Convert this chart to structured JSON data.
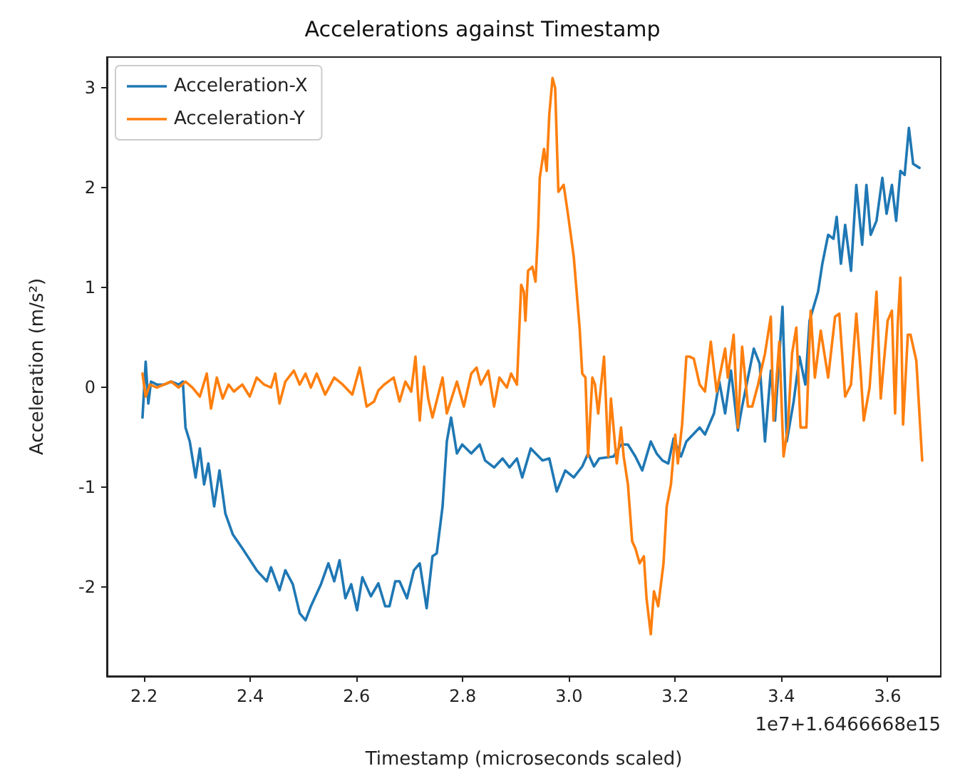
{
  "chart_data": {
    "type": "line",
    "title": "Accelerations against Timestamp",
    "xlabel": "Timestamp (microseconds scaled)",
    "ylabel": "Acceleration (m/s²)",
    "annotations": [
      "1e7+1.6466668e15"
    ],
    "xlim": [
      2.13,
      3.7
    ],
    "ylim": [
      -2.89,
      3.31
    ],
    "xticks": [
      {
        "value": 2.2,
        "label": "2.2"
      },
      {
        "value": 2.4,
        "label": "2.4"
      },
      {
        "value": 2.6,
        "label": "2.6"
      },
      {
        "value": 2.8,
        "label": "2.8"
      },
      {
        "value": 3.0,
        "label": "3.0"
      },
      {
        "value": 3.2,
        "label": "3.2"
      },
      {
        "value": 3.4,
        "label": "3.4"
      },
      {
        "value": 3.6,
        "label": "3.6"
      }
    ],
    "yticks": [
      -2,
      -1,
      0,
      1,
      2,
      3
    ],
    "grid": false,
    "legend": "top left",
    "marker": "none",
    "line_style": "solid",
    "series": [
      {
        "name": "Acceleration-X",
        "color": "#1f77b4",
        "x": [
          2.197,
          2.203,
          2.208,
          2.213,
          2.224,
          2.238,
          2.251,
          2.265,
          2.273,
          2.278,
          2.286,
          2.297,
          2.305,
          2.313,
          2.321,
          2.332,
          2.342,
          2.353,
          2.367,
          2.385,
          2.412,
          2.431,
          2.439,
          2.455,
          2.466,
          2.48,
          2.493,
          2.504,
          2.514,
          2.533,
          2.547,
          2.558,
          2.568,
          2.579,
          2.59,
          2.601,
          2.611,
          2.627,
          2.641,
          2.654,
          2.662,
          2.673,
          2.681,
          2.695,
          2.708,
          2.719,
          2.732,
          2.743,
          2.751,
          2.762,
          2.77,
          2.778,
          2.789,
          2.799,
          2.816,
          2.832,
          2.842,
          2.859,
          2.875,
          2.888,
          2.902,
          2.912,
          2.928,
          2.95,
          2.963,
          2.977,
          2.993,
          3.009,
          3.025,
          3.036,
          3.047,
          3.057,
          3.084,
          3.098,
          3.111,
          3.125,
          3.138,
          3.154,
          3.165,
          3.176,
          3.187,
          3.197,
          3.211,
          3.221,
          3.246,
          3.256,
          3.273,
          3.283,
          3.294,
          3.305,
          3.318,
          3.326,
          3.337,
          3.348,
          3.359,
          3.369,
          3.38,
          3.388,
          3.402,
          3.41,
          3.423,
          3.434,
          3.445,
          3.453,
          3.469,
          3.477,
          3.488,
          3.498,
          3.504,
          3.512,
          3.52,
          3.531,
          3.541,
          3.552,
          3.56,
          3.568,
          3.579,
          3.59,
          3.598,
          3.608,
          3.616,
          3.624,
          3.632,
          3.64,
          3.648,
          3.66
        ],
        "values": [
          -0.3,
          0.26,
          -0.16,
          0.06,
          0.03,
          0.03,
          0.06,
          0.03,
          0.06,
          -0.4,
          -0.54,
          -0.9,
          -0.61,
          -0.97,
          -0.76,
          -1.19,
          -0.83,
          -1.26,
          -1.47,
          -1.61,
          -1.83,
          -1.94,
          -1.8,
          -2.03,
          -1.83,
          -1.97,
          -2.26,
          -2.33,
          -2.19,
          -1.97,
          -1.76,
          -1.94,
          -1.73,
          -2.11,
          -1.97,
          -2.23,
          -1.9,
          -2.09,
          -1.96,
          -2.19,
          -2.19,
          -1.94,
          -1.94,
          -2.11,
          -1.83,
          -1.76,
          -2.21,
          -1.69,
          -1.66,
          -1.19,
          -0.54,
          -0.3,
          -0.66,
          -0.57,
          -0.66,
          -0.57,
          -0.73,
          -0.8,
          -0.71,
          -0.8,
          -0.71,
          -0.9,
          -0.61,
          -0.73,
          -0.71,
          -1.04,
          -0.83,
          -0.9,
          -0.79,
          -0.66,
          -0.79,
          -0.71,
          -0.69,
          -0.57,
          -0.57,
          -0.69,
          -0.83,
          -0.54,
          -0.66,
          -0.73,
          -0.76,
          -0.51,
          -0.69,
          -0.54,
          -0.4,
          -0.47,
          -0.26,
          0.06,
          -0.26,
          0.17,
          -0.43,
          -0.19,
          0.1,
          0.39,
          0.24,
          -0.54,
          0.17,
          -0.33,
          0.81,
          -0.54,
          -0.14,
          0.31,
          0.03,
          0.67,
          0.96,
          1.24,
          1.53,
          1.49,
          1.71,
          1.24,
          1.63,
          1.17,
          2.03,
          1.43,
          2.03,
          1.53,
          1.67,
          2.1,
          1.74,
          2.03,
          1.67,
          2.17,
          2.13,
          2.6,
          2.24,
          2.2
        ]
      },
      {
        "name": "Acceleration-Y",
        "color": "#ff7f0e",
        "x": [
          2.197,
          2.203,
          2.211,
          2.224,
          2.251,
          2.265,
          2.278,
          2.291,
          2.305,
          2.318,
          2.326,
          2.337,
          2.348,
          2.359,
          2.369,
          2.385,
          2.399,
          2.412,
          2.426,
          2.439,
          2.447,
          2.455,
          2.466,
          2.482,
          2.493,
          2.504,
          2.514,
          2.525,
          2.541,
          2.558,
          2.574,
          2.592,
          2.606,
          2.619,
          2.633,
          2.641,
          2.652,
          2.67,
          2.681,
          2.692,
          2.703,
          2.711,
          2.719,
          2.727,
          2.735,
          2.743,
          2.762,
          2.77,
          2.789,
          2.802,
          2.816,
          2.826,
          2.834,
          2.848,
          2.859,
          2.869,
          2.883,
          2.891,
          2.902,
          2.91,
          2.915,
          2.918,
          2.923,
          2.931,
          2.937,
          2.942,
          2.945,
          2.953,
          2.958,
          2.963,
          2.969,
          2.974,
          2.98,
          2.99,
          2.998,
          3.009,
          3.02,
          3.025,
          3.031,
          3.036,
          3.044,
          3.049,
          3.055,
          3.066,
          3.074,
          3.079,
          3.09,
          3.098,
          3.103,
          3.111,
          3.119,
          3.125,
          3.133,
          3.141,
          3.146,
          3.154,
          3.16,
          3.168,
          3.178,
          3.184,
          3.192,
          3.2,
          3.205,
          3.213,
          3.221,
          3.227,
          3.235,
          3.246,
          3.256,
          3.267,
          3.278,
          3.294,
          3.299,
          3.31,
          3.318,
          3.326,
          3.337,
          3.345,
          3.356,
          3.369,
          3.38,
          3.385,
          3.396,
          3.404,
          3.412,
          3.42,
          3.428,
          3.436,
          3.447,
          3.455,
          3.463,
          3.474,
          3.488,
          3.501,
          3.509,
          3.52,
          3.531,
          3.541,
          3.549,
          3.555,
          3.566,
          3.579,
          3.587,
          3.592,
          3.6,
          3.608,
          3.614,
          3.619,
          3.624,
          3.629,
          3.638,
          3.643,
          3.654,
          3.665
        ],
        "values": [
          0.14,
          -0.09,
          0.03,
          0.0,
          0.06,
          0.0,
          0.06,
          0.0,
          -0.09,
          0.14,
          -0.21,
          0.1,
          -0.11,
          0.03,
          -0.04,
          0.03,
          -0.09,
          0.1,
          0.03,
          0.0,
          0.14,
          -0.16,
          0.06,
          0.17,
          0.03,
          0.14,
          0.0,
          0.14,
          -0.07,
          0.1,
          0.03,
          -0.07,
          0.2,
          -0.19,
          -0.14,
          -0.03,
          0.03,
          0.1,
          -0.14,
          0.06,
          -0.04,
          0.31,
          -0.33,
          0.21,
          -0.11,
          -0.3,
          0.1,
          -0.26,
          0.06,
          -0.19,
          0.14,
          0.2,
          0.03,
          0.17,
          -0.19,
          0.1,
          0.0,
          0.14,
          0.03,
          1.03,
          0.96,
          0.67,
          1.17,
          1.21,
          1.06,
          1.6,
          2.1,
          2.39,
          2.17,
          2.74,
          3.1,
          3.0,
          1.96,
          2.03,
          1.74,
          1.31,
          0.6,
          0.14,
          0.1,
          -0.69,
          0.1,
          0.03,
          -0.26,
          0.31,
          -0.69,
          -0.11,
          -0.76,
          -0.4,
          -0.69,
          -0.97,
          -1.54,
          -1.61,
          -1.76,
          -1.69,
          -2.11,
          -2.47,
          -2.04,
          -2.19,
          -1.76,
          -1.19,
          -0.97,
          -0.47,
          -0.76,
          -0.37,
          0.31,
          0.31,
          0.29,
          0.03,
          -0.04,
          0.46,
          -0.04,
          0.39,
          0.1,
          0.53,
          -0.4,
          0.41,
          -0.19,
          -0.19,
          0.03,
          0.34,
          0.71,
          -0.33,
          0.46,
          -0.69,
          -0.4,
          0.34,
          0.6,
          -0.4,
          -0.4,
          0.77,
          0.1,
          0.57,
          0.1,
          0.71,
          0.74,
          -0.09,
          0.03,
          0.74,
          0.17,
          -0.33,
          0.0,
          0.96,
          -0.11,
          0.2,
          0.67,
          0.77,
          -0.26,
          0.63,
          1.1,
          -0.37,
          0.53,
          0.53,
          0.27,
          -0.73
        ]
      }
    ]
  }
}
